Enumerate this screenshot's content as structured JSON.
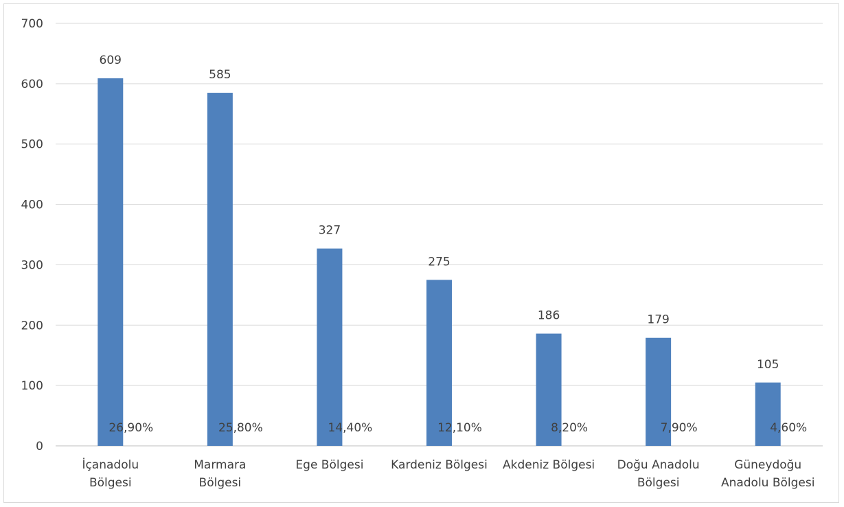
{
  "chart_data": {
    "type": "bar",
    "title": "",
    "xlabel": "",
    "ylabel": "",
    "ylim": [
      0,
      700
    ],
    "yticks": [
      0,
      100,
      200,
      300,
      400,
      500,
      600,
      700
    ],
    "grid": true,
    "legend": "none",
    "categories": [
      [
        "İçanadolu",
        "Bölgesi"
      ],
      [
        "Marmara",
        "Bölgesi"
      ],
      [
        "Ege Bölgesi"
      ],
      [
        "Kardeniz Bölgesi"
      ],
      [
        "Akdeniz Bölgesi"
      ],
      [
        "Doğu Anadolu",
        "Bölgesi"
      ],
      [
        "Güneydoğu",
        "Anadolu Bölgesi"
      ]
    ],
    "series": [
      {
        "values": [
          609,
          585,
          327,
          275,
          186,
          179,
          105
        ],
        "percent_labels": [
          "26,90%",
          "25,80%",
          "14,40%",
          "12,10%",
          "8,20%",
          "7,90%",
          "4,60%"
        ],
        "color": "#4f81bd"
      }
    ],
    "colors": {
      "gridline": "#d9d9d9",
      "axis": "#bfbfbf",
      "text": "#404040"
    }
  }
}
